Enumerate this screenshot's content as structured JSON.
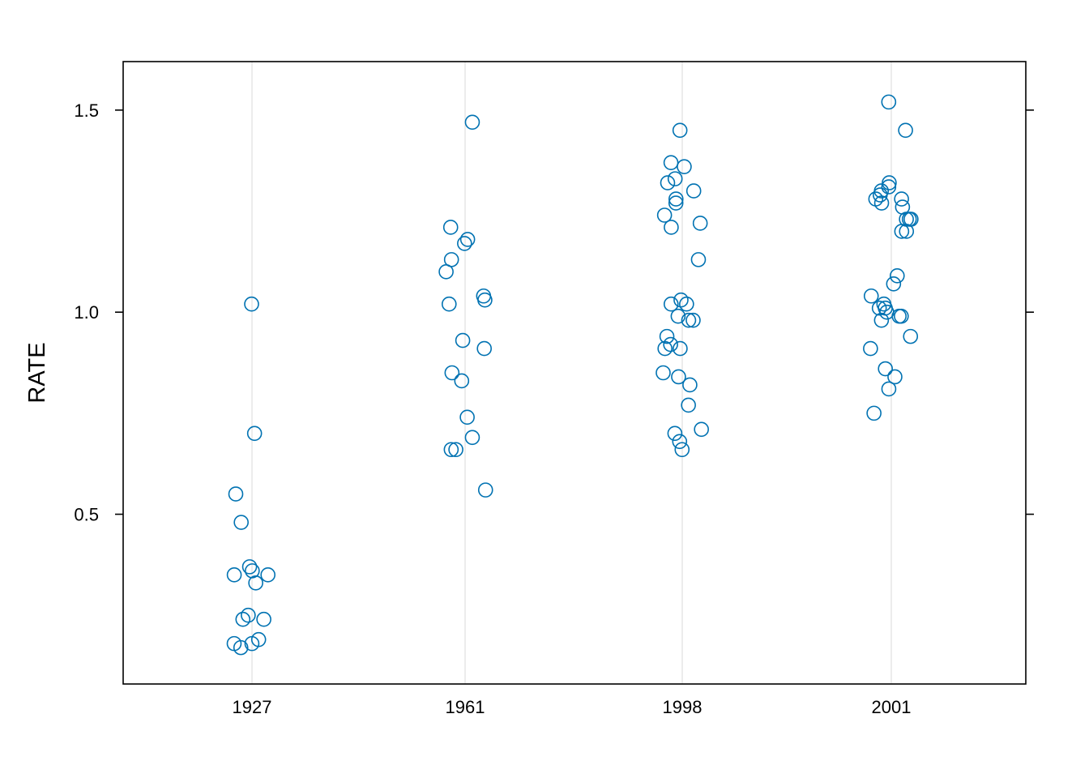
{
  "chart_data": {
    "type": "scatter",
    "subtype": "jittered strip plot",
    "xlabel": "",
    "ylabel": "RATE",
    "categories": [
      "1927",
      "1961",
      "1998",
      "2001"
    ],
    "ylim": [
      0.08,
      1.62
    ],
    "yticks": [
      {
        "value": 0.5,
        "label": "0.5"
      },
      {
        "value": 1.0,
        "label": "1.0"
      },
      {
        "value": 1.5,
        "label": "1.5"
      }
    ],
    "grid": "vertical lines at categories",
    "marker": "open circle",
    "point_color": "#0072B2",
    "gridline_color": "#E6E6E6",
    "points": [
      {
        "category": "1927",
        "values": [
          1.02,
          0.7,
          0.55,
          0.48,
          0.37,
          0.36,
          0.35,
          0.35,
          0.33,
          0.25,
          0.24,
          0.24,
          0.19,
          0.18,
          0.18,
          0.17
        ]
      },
      {
        "category": "1961",
        "values": [
          1.47,
          1.21,
          1.18,
          1.17,
          1.13,
          1.1,
          1.04,
          1.03,
          1.02,
          0.93,
          0.91,
          0.85,
          0.83,
          0.74,
          0.69,
          0.66,
          0.66,
          0.56
        ]
      },
      {
        "category": "1998",
        "values": [
          1.45,
          1.37,
          1.36,
          1.33,
          1.32,
          1.3,
          1.28,
          1.27,
          1.24,
          1.22,
          1.21,
          1.13,
          1.03,
          1.02,
          1.02,
          0.99,
          0.98,
          0.98,
          0.94,
          0.92,
          0.91,
          0.91,
          0.85,
          0.84,
          0.82,
          0.77,
          0.71,
          0.7,
          0.68,
          0.66
        ]
      },
      {
        "category": "2001",
        "values": [
          1.52,
          1.45,
          1.32,
          1.31,
          1.3,
          1.29,
          1.28,
          1.28,
          1.27,
          1.26,
          1.23,
          1.23,
          1.23,
          1.2,
          1.2,
          1.09,
          1.07,
          1.04,
          1.02,
          1.01,
          1.01,
          1.0,
          0.99,
          0.99,
          0.98,
          0.94,
          0.91,
          0.86,
          0.84,
          0.81,
          0.75
        ]
      }
    ]
  }
}
